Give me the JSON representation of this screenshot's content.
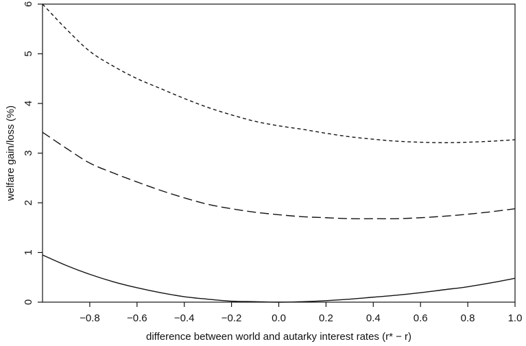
{
  "chart_data": {
    "type": "line",
    "xlabel": "difference between world and autarky interest rates (r* − r)",
    "ylabel": "welfare gain/loss (%)",
    "xlim": [
      -1.0,
      1.0
    ],
    "ylim": [
      0,
      6
    ],
    "x_ticks": [
      -0.8,
      -0.6,
      -0.4,
      -0.2,
      0.0,
      0.2,
      0.4,
      0.6,
      0.8,
      1.0
    ],
    "x_tick_labels": [
      "−0.8",
      "−0.6",
      "−0.4",
      "−0.2",
      "0.0",
      "0.2",
      "0.4",
      "0.6",
      "0.8",
      "1.0"
    ],
    "y_ticks": [
      0,
      1,
      2,
      3,
      4,
      5,
      6
    ],
    "y_tick_labels": [
      "0",
      "1",
      "2",
      "3",
      "4",
      "5",
      "6"
    ],
    "grid": false,
    "series": [
      {
        "style": "short-dash",
        "color": "#111111",
        "x": [
          -1.0,
          -0.9,
          -0.8,
          -0.7,
          -0.6,
          -0.5,
          -0.4,
          -0.3,
          -0.2,
          -0.1,
          0.0,
          0.1,
          0.2,
          0.3,
          0.4,
          0.5,
          0.6,
          0.7,
          0.8,
          0.9,
          1.0
        ],
        "y": [
          6.0,
          5.5,
          5.05,
          4.75,
          4.5,
          4.3,
          4.1,
          3.92,
          3.77,
          3.64,
          3.55,
          3.48,
          3.4,
          3.33,
          3.28,
          3.24,
          3.22,
          3.21,
          3.22,
          3.24,
          3.27
        ]
      },
      {
        "style": "long-dash",
        "color": "#111111",
        "x": [
          -1.0,
          -0.9,
          -0.8,
          -0.7,
          -0.6,
          -0.5,
          -0.4,
          -0.3,
          -0.2,
          -0.1,
          0.0,
          0.1,
          0.2,
          0.3,
          0.4,
          0.5,
          0.6,
          0.7,
          0.8,
          0.9,
          1.0
        ],
        "y": [
          3.42,
          3.1,
          2.8,
          2.6,
          2.42,
          2.25,
          2.1,
          1.97,
          1.88,
          1.81,
          1.76,
          1.72,
          1.7,
          1.68,
          1.68,
          1.68,
          1.7,
          1.73,
          1.77,
          1.82,
          1.88
        ]
      },
      {
        "style": "solid",
        "color": "#111111",
        "x": [
          -1.0,
          -0.9,
          -0.8,
          -0.7,
          -0.6,
          -0.5,
          -0.4,
          -0.3,
          -0.2,
          -0.1,
          0.0,
          0.1,
          0.2,
          0.3,
          0.4,
          0.5,
          0.6,
          0.7,
          0.8,
          0.9,
          1.0
        ],
        "y": [
          0.95,
          0.74,
          0.56,
          0.41,
          0.29,
          0.19,
          0.11,
          0.06,
          0.02,
          0.01,
          0.0,
          0.01,
          0.03,
          0.06,
          0.1,
          0.14,
          0.19,
          0.25,
          0.31,
          0.39,
          0.48
        ]
      }
    ]
  }
}
